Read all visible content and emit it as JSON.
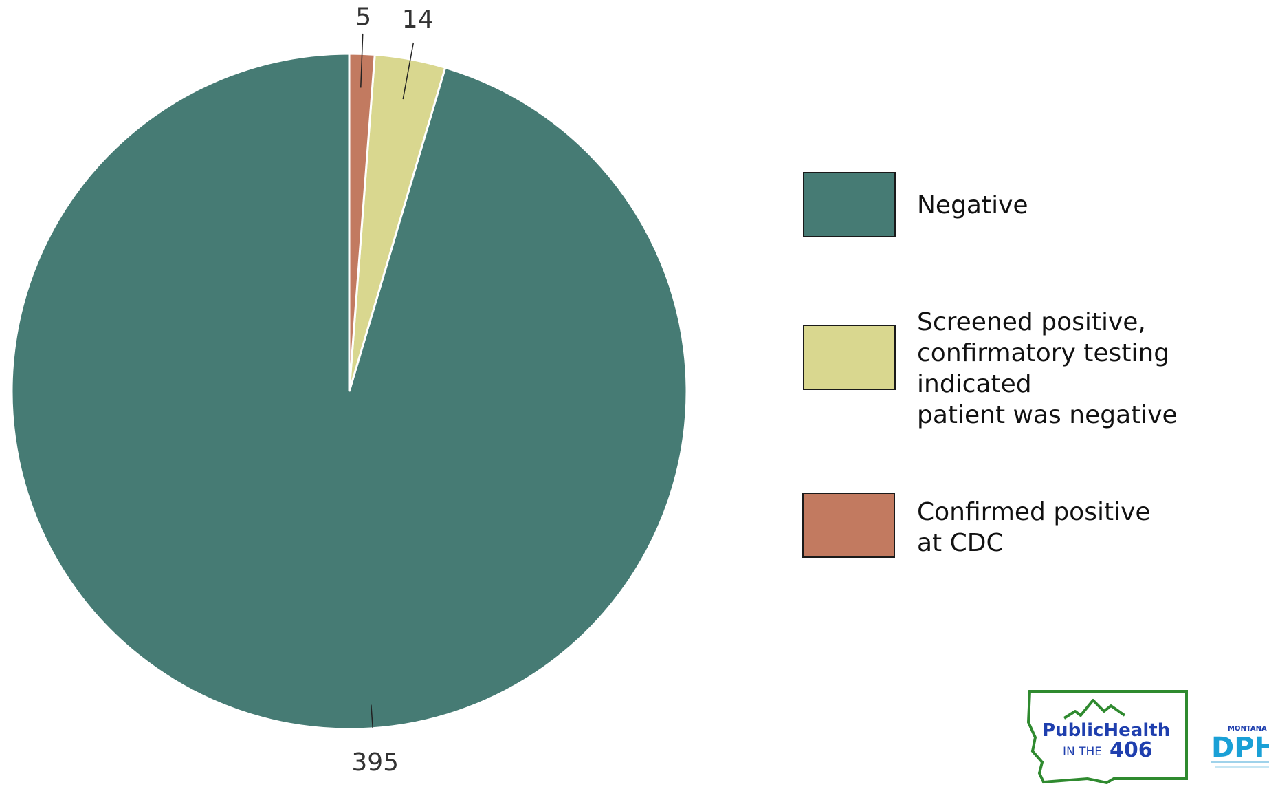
{
  "chart_data": {
    "type": "pie",
    "start_angle_deg": 0,
    "direction": "counterclockwise",
    "slices": [
      {
        "label": "Negative",
        "value": 395,
        "color": "#467b74"
      },
      {
        "label": "Screened positive, confirmatory testing indicated patient was negative",
        "value": 14,
        "color": "#d9d78f"
      },
      {
        "label": "Confirmed positive at CDC",
        "value": 5,
        "color": "#c27a60"
      }
    ],
    "data_labels": [
      "395",
      "14",
      "5"
    ],
    "legend": {
      "position": "right",
      "entries": [
        {
          "lines": [
            "Negative"
          ],
          "color": "#467b74"
        },
        {
          "lines": [
            "Screened positive,",
            "confirmatory testing indicated",
            "patient was negative"
          ],
          "color": "#d9d78f"
        },
        {
          "lines": [
            "Confirmed positive",
            "at CDC"
          ],
          "color": "#c27a60"
        }
      ]
    }
  },
  "logos": {
    "public_health": {
      "line1": "PublicHealth",
      "line2_prefix": "IN THE",
      "line2_number": "406",
      "color_primary": "#1f3fae",
      "color_outline": "#2f8a2f"
    },
    "dphhs": {
      "top": "MONTANA",
      "main": "DPHHS",
      "color": "#1aa0d6"
    }
  }
}
